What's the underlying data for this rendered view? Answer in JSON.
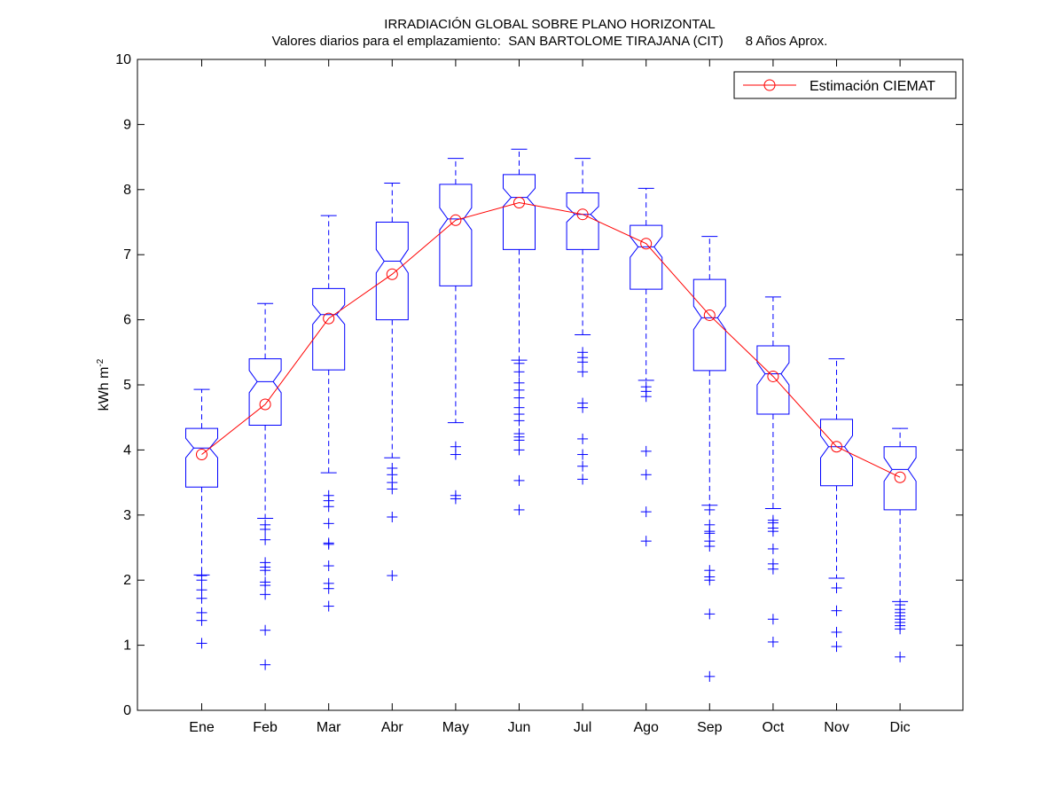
{
  "chart_data": {
    "type": "boxplot",
    "title": "IRRADIACIÓN GLOBAL SOBRE PLANO HORIZONTAL",
    "subtitle": "Valores diarios para el emplazamiento:  SAN BARTOLOME TIRAJANA (CIT)      8 Años Aprox.",
    "ylabel": "kWh m",
    "ylabel_superscript": "-2",
    "ylim": [
      0,
      10
    ],
    "yticks": [
      "0",
      "1",
      "2",
      "3",
      "4",
      "5",
      "6",
      "7",
      "8",
      "9",
      "10"
    ],
    "categories": [
      "Ene",
      "Feb",
      "Mar",
      "Abr",
      "May",
      "Jun",
      "Jul",
      "Ago",
      "Sep",
      "Oct",
      "Nov",
      "Dic"
    ],
    "box_color": "#0000ff",
    "line_color": "#ff0000",
    "boxes": [
      {
        "q1": 3.43,
        "median": 4.03,
        "q3": 4.33,
        "notch_low": 3.88,
        "notch_high": 4.18,
        "whisker_low": 2.08,
        "whisker_high": 4.93,
        "outliers": [
          2.07,
          2.0,
          1.85,
          1.72,
          1.5,
          1.38,
          1.03
        ]
      },
      {
        "q1": 4.38,
        "median": 5.05,
        "q3": 5.4,
        "notch_low": 4.88,
        "notch_high": 5.22,
        "whisker_low": 2.95,
        "whisker_high": 6.25,
        "outliers": [
          2.85,
          2.78,
          2.62,
          2.27,
          2.2,
          2.15,
          1.97,
          1.92,
          1.78,
          1.23,
          0.7
        ]
      },
      {
        "q1": 5.23,
        "median": 6.08,
        "q3": 6.48,
        "notch_low": 5.93,
        "notch_high": 6.23,
        "whisker_low": 3.65,
        "whisker_high": 7.6,
        "outliers": [
          3.3,
          3.22,
          3.13,
          2.87,
          2.57,
          2.55,
          2.22,
          1.95,
          1.87,
          1.6
        ]
      },
      {
        "q1": 6.0,
        "median": 6.9,
        "q3": 7.5,
        "notch_low": 6.72,
        "notch_high": 7.08,
        "whisker_low": 3.88,
        "whisker_high": 8.1,
        "outliers": [
          3.72,
          3.62,
          3.5,
          3.4,
          2.97,
          2.07
        ]
      },
      {
        "q1": 6.52,
        "median": 7.55,
        "q3": 8.08,
        "notch_low": 7.38,
        "notch_high": 7.72,
        "whisker_low": 4.42,
        "whisker_high": 8.48,
        "outliers": [
          4.05,
          3.93,
          3.3,
          3.25
        ]
      },
      {
        "q1": 7.08,
        "median": 7.88,
        "q3": 8.23,
        "notch_low": 7.74,
        "notch_high": 8.02,
        "whisker_low": 5.38,
        "whisker_high": 8.62,
        "outliers": [
          5.33,
          5.2,
          5.03,
          4.92,
          4.8,
          4.65,
          4.55,
          4.45,
          4.25,
          4.2,
          4.15,
          4.0,
          3.53,
          3.08
        ]
      },
      {
        "q1": 7.08,
        "median": 7.62,
        "q3": 7.95,
        "notch_low": 7.5,
        "notch_high": 7.74,
        "whisker_low": 5.77,
        "whisker_high": 8.48,
        "outliers": [
          5.5,
          5.42,
          5.35,
          5.2,
          4.72,
          4.65,
          4.17,
          3.93,
          3.75,
          3.55
        ]
      },
      {
        "q1": 6.47,
        "median": 7.12,
        "q3": 7.45,
        "notch_low": 6.96,
        "notch_high": 7.28,
        "whisker_low": 5.07,
        "whisker_high": 8.02,
        "outliers": [
          4.97,
          4.9,
          4.82,
          3.98,
          3.62,
          3.05,
          2.6
        ]
      },
      {
        "q1": 5.22,
        "median": 6.03,
        "q3": 6.62,
        "notch_low": 5.85,
        "notch_high": 6.21,
        "whisker_low": 3.15,
        "whisker_high": 7.28,
        "outliers": [
          3.08,
          2.85,
          2.75,
          2.72,
          2.6,
          2.52,
          2.15,
          2.05,
          2.0,
          1.48,
          0.52
        ]
      },
      {
        "q1": 4.55,
        "median": 5.17,
        "q3": 5.6,
        "notch_low": 5.0,
        "notch_high": 5.34,
        "whisker_low": 3.1,
        "whisker_high": 6.35,
        "outliers": [
          2.92,
          2.88,
          2.8,
          2.75,
          2.48,
          2.25,
          2.17,
          1.4,
          1.05
        ]
      },
      {
        "q1": 3.45,
        "median": 4.05,
        "q3": 4.47,
        "notch_low": 3.88,
        "notch_high": 4.22,
        "whisker_low": 2.03,
        "whisker_high": 5.4,
        "outliers": [
          1.88,
          1.53,
          1.2,
          0.98
        ]
      },
      {
        "q1": 3.08,
        "median": 3.7,
        "q3": 4.05,
        "notch_low": 3.52,
        "notch_high": 3.88,
        "whisker_low": 1.67,
        "whisker_high": 4.33,
        "outliers": [
          1.62,
          1.55,
          1.5,
          1.45,
          1.4,
          1.35,
          1.3,
          1.25,
          0.82
        ]
      }
    ],
    "series": [
      {
        "name": "Estimación CIEMAT",
        "values": [
          3.93,
          4.7,
          6.02,
          6.7,
          7.53,
          7.8,
          7.62,
          7.17,
          6.07,
          5.13,
          4.05,
          3.58
        ]
      }
    ],
    "legend_position": "top-right",
    "grid": false
  }
}
